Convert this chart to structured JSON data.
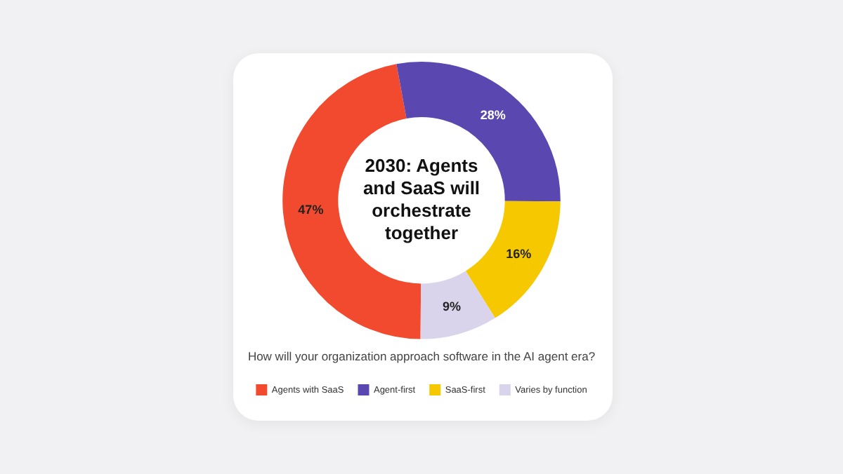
{
  "chart_data": {
    "type": "donut",
    "title": "2030: Agents and SaaS will orchestrate together",
    "subtitle": "How will your organization approach software in the AI agent era?",
    "categories": [
      "Agents with SaaS",
      "Agent-first",
      "SaaS-first",
      "Varies by function"
    ],
    "values": [
      47,
      28,
      16,
      9
    ],
    "colors": [
      "#f24a2e",
      "#5a48b0",
      "#f5c800",
      "#d9d4ec"
    ],
    "value_labels": [
      "47%",
      "28%",
      "16%",
      "9%"
    ],
    "legend": "bottom"
  }
}
